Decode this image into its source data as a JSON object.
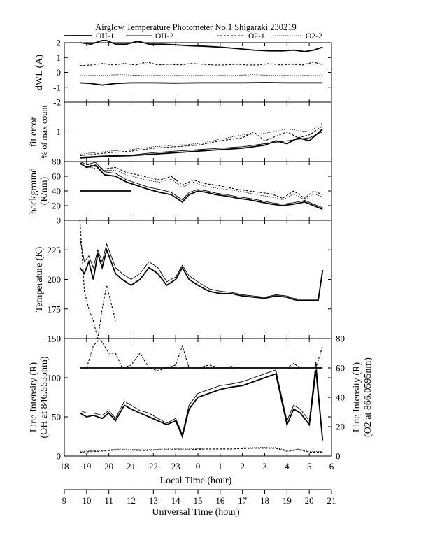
{
  "title": "Airglow Temperature Photometer No.1  Shigaraki  230219",
  "legend": [
    {
      "label": "OH-1",
      "style": "solid-thick"
    },
    {
      "label": "OH-2",
      "style": "solid-thin"
    },
    {
      "label": "O2-1",
      "style": "dashed"
    },
    {
      "label": "O2-2",
      "style": "dotted-thin"
    }
  ],
  "axes": {
    "local_time": {
      "label": "Local Time (hour)",
      "ticks": [
        "18",
        "19",
        "20",
        "21",
        "22",
        "23",
        "0",
        "1",
        "2",
        "3",
        "4",
        "5",
        "6"
      ],
      "range": [
        18,
        30
      ]
    },
    "universal_time": {
      "label": "Universal Time (hour)",
      "ticks": [
        "9",
        "10",
        "11",
        "12",
        "13",
        "14",
        "15",
        "16",
        "17",
        "18",
        "19",
        "20",
        "21"
      ],
      "range": [
        9,
        21
      ]
    }
  },
  "chart_data": [
    {
      "id": "dwl",
      "type": "line",
      "ylabel": "dWL (A)",
      "ylim": [
        -2,
        2
      ],
      "yticks": [
        "2",
        "1",
        "0",
        "-1",
        "-2"
      ],
      "series": [
        {
          "name": "OH-1",
          "style": "solid-thick",
          "x": [
            18.7,
            19.2,
            19.8,
            20.3,
            20.8,
            21.3,
            21.8,
            22.4,
            23.0,
            23.6,
            24.4,
            25.0,
            25.8,
            26.5,
            27.2,
            27.8,
            28.3,
            28.8,
            29.2,
            29.6
          ],
          "y": [
            2.0,
            1.9,
            2.2,
            1.9,
            1.9,
            2.1,
            1.9,
            1.9,
            1.85,
            1.8,
            1.75,
            1.7,
            1.6,
            1.5,
            1.45,
            1.45,
            1.5,
            1.4,
            1.5,
            1.7
          ]
        },
        {
          "name": "OH-1",
          "style": "solid-thick",
          "x": [
            18.7,
            19.2,
            19.7,
            20.3,
            21.0,
            22.0,
            23.0,
            24.0,
            25.0,
            26.0,
            27.0,
            28.0,
            29.0,
            29.6
          ],
          "y": [
            -0.7,
            -0.75,
            -0.85,
            -0.75,
            -0.7,
            -0.7,
            -0.72,
            -0.7,
            -0.7,
            -0.7,
            -0.68,
            -0.7,
            -0.7,
            -0.7
          ]
        },
        {
          "name": "O2-1",
          "style": "dashed",
          "x": [
            18.7,
            19.2,
            19.7,
            20.2,
            20.7,
            21.2,
            21.7,
            22.2,
            22.7,
            23.2,
            23.7,
            24.2,
            24.7,
            25.2,
            25.7,
            26.2,
            26.7,
            27.2,
            27.7,
            28.2,
            28.7,
            29.2,
            29.6
          ],
          "y": [
            0.45,
            0.5,
            0.6,
            0.5,
            0.6,
            0.5,
            0.7,
            0.5,
            0.55,
            0.5,
            0.6,
            0.55,
            0.5,
            0.5,
            0.55,
            0.5,
            0.5,
            0.6,
            0.5,
            0.55,
            0.5,
            0.7,
            0.5
          ]
        },
        {
          "name": "O2-2",
          "style": "dotted-thin",
          "x": [
            18.7,
            19.5,
            20.5,
            21.5,
            22.5,
            23.5,
            24.5,
            25.5,
            26.5,
            27.5,
            28.5,
            29.6
          ],
          "y": [
            -0.2,
            -0.2,
            -0.15,
            -0.2,
            -0.2,
            -0.2,
            -0.2,
            -0.2,
            -0.15,
            -0.2,
            -0.2,
            -0.2
          ]
        }
      ]
    },
    {
      "id": "fit",
      "type": "line",
      "ylabel": "fit error",
      "ylabel2": "% of max count",
      "ylim": [
        0,
        2
      ],
      "yticks": [
        "2",
        "1",
        "0"
      ],
      "series": [
        {
          "name": "OH-1",
          "style": "solid-thick",
          "x": [
            18.7,
            20.0,
            21.0,
            22.0,
            23.0,
            24.0,
            25.0,
            26.0,
            27.0,
            27.5,
            28.0,
            28.5,
            29.0,
            29.6
          ],
          "y": [
            0.12,
            0.18,
            0.2,
            0.25,
            0.3,
            0.35,
            0.4,
            0.45,
            0.55,
            0.7,
            0.6,
            0.8,
            0.7,
            1.1
          ]
        },
        {
          "name": "OH-2",
          "style": "solid-thin",
          "x": [
            18.7,
            20.0,
            21.0,
            22.0,
            23.0,
            24.0,
            25.0,
            26.0,
            27.0,
            28.0,
            29.0,
            29.6
          ],
          "y": [
            0.15,
            0.2,
            0.22,
            0.3,
            0.35,
            0.4,
            0.45,
            0.5,
            0.6,
            0.7,
            0.8,
            1.0
          ]
        },
        {
          "name": "O2-1",
          "style": "dashed",
          "x": [
            18.7,
            20.0,
            21.0,
            22.0,
            23.0,
            24.0,
            25.0,
            26.0,
            26.5,
            27.0,
            28.0,
            28.5,
            29.0,
            29.6
          ],
          "y": [
            0.2,
            0.3,
            0.35,
            0.45,
            0.5,
            0.55,
            0.7,
            0.8,
            1.0,
            0.7,
            1.0,
            0.8,
            0.9,
            1.2
          ]
        },
        {
          "name": "O2-2",
          "style": "dotted-thin",
          "x": [
            18.7,
            20.0,
            21.0,
            22.0,
            23.0,
            24.0,
            25.0,
            26.0,
            27.0,
            28.0,
            29.0,
            29.6
          ],
          "y": [
            0.25,
            0.35,
            0.4,
            0.5,
            0.55,
            0.6,
            0.75,
            0.9,
            0.95,
            1.1,
            1.0,
            1.3
          ]
        }
      ]
    },
    {
      "id": "background",
      "type": "line",
      "ylabel": "background",
      "ylabel2": "(R/nm)",
      "ylim": [
        0,
        80
      ],
      "yticks": [
        "80",
        "60",
        "40",
        "20",
        "0"
      ],
      "series": [
        {
          "name": "OH-1",
          "style": "solid-thick",
          "x": [
            18.7,
            19.0,
            19.4,
            19.8,
            20.3,
            20.8,
            21.3,
            21.8,
            22.3,
            22.8,
            23.3,
            23.6,
            24.0,
            24.4,
            24.8,
            25.3,
            25.8,
            26.3,
            26.8,
            27.3,
            27.8,
            28.3,
            28.8,
            29.2,
            29.6
          ],
          "y": [
            78,
            72,
            75,
            62,
            60,
            52,
            47,
            42,
            38,
            35,
            25,
            35,
            40,
            38,
            35,
            33,
            30,
            28,
            25,
            22,
            20,
            22,
            25,
            20,
            15
          ]
        },
        {
          "name": "OH-2",
          "style": "solid-thin",
          "x": [
            18.7,
            19.0,
            19.4,
            19.8,
            20.3,
            20.8,
            21.3,
            21.8,
            22.3,
            22.8,
            23.3,
            23.6,
            24.0,
            24.4,
            24.8,
            25.3,
            25.8,
            26.3,
            26.8,
            27.3,
            27.8,
            28.3,
            28.8,
            29.2,
            29.6
          ],
          "y": [
            80,
            76,
            79,
            66,
            64,
            55,
            50,
            45,
            42,
            38,
            28,
            38,
            42,
            40,
            37,
            35,
            32,
            30,
            27,
            24,
            22,
            24,
            27,
            22,
            17
          ]
        },
        {
          "name": "O2-1",
          "style": "dashed",
          "x": [
            18.7,
            19.2,
            19.8,
            20.3,
            20.8,
            21.3,
            21.8,
            22.3,
            22.8,
            23.3,
            23.8,
            24.3,
            24.8,
            25.3,
            25.8,
            26.3,
            26.8,
            27.3,
            27.8,
            28.3,
            28.8,
            29.2,
            29.6
          ],
          "y": [
            78,
            75,
            70,
            72,
            65,
            62,
            58,
            55,
            60,
            48,
            55,
            50,
            48,
            45,
            42,
            40,
            38,
            36,
            30,
            40,
            30,
            40,
            35
          ]
        },
        {
          "name": "O2-2",
          "style": "dotted-thin",
          "x": [
            18.7,
            19.2,
            19.8,
            20.3,
            20.8,
            21.3,
            21.8,
            22.3,
            22.8,
            23.3,
            23.8,
            24.3,
            24.8,
            25.3,
            25.8,
            26.3,
            26.8,
            27.3,
            27.8,
            28.3,
            28.8,
            29.2,
            29.6
          ],
          "y": [
            76,
            72,
            68,
            68,
            62,
            58,
            54,
            52,
            56,
            45,
            52,
            46,
            44,
            42,
            40,
            37,
            34,
            32,
            28,
            36,
            28,
            36,
            32
          ]
        },
        {
          "name": "OH-1",
          "style": "solid-thick",
          "x": [
            18.7,
            19.5,
            20.5,
            21.0
          ],
          "y": [
            40,
            40,
            40,
            40
          ]
        }
      ]
    },
    {
      "id": "temperature",
      "type": "line",
      "ylabel": "Temperature (K)",
      "ylim": [
        150,
        250
      ],
      "yticks": [
        "225",
        "200",
        "175",
        "150"
      ],
      "series": [
        {
          "name": "OH-1",
          "style": "solid-thick",
          "x": [
            18.7,
            18.9,
            19.1,
            19.3,
            19.5,
            19.7,
            19.9,
            20.1,
            20.3,
            20.6,
            21.0,
            21.4,
            21.8,
            22.2,
            22.6,
            23.0,
            23.3,
            23.6,
            24.0,
            24.5,
            25.0,
            25.5,
            26.0,
            26.5,
            27.0,
            27.5,
            28.0,
            28.3,
            28.6,
            29.0,
            29.4,
            29.6
          ],
          "y": [
            210,
            205,
            215,
            200,
            222,
            210,
            225,
            215,
            205,
            200,
            195,
            200,
            210,
            205,
            195,
            200,
            210,
            200,
            195,
            190,
            188,
            188,
            186,
            185,
            184,
            186,
            185,
            183,
            182,
            182,
            182,
            208
          ]
        },
        {
          "name": "OH-2",
          "style": "solid-thin",
          "x": [
            18.7,
            18.9,
            19.1,
            19.3,
            19.5,
            19.7,
            19.9,
            20.1,
            20.3,
            20.6,
            21.0,
            21.4,
            21.8,
            22.2,
            22.6,
            23.0,
            23.3,
            23.6,
            24.0,
            24.5,
            25.0,
            25.5,
            26.0,
            26.5,
            27.0,
            27.5,
            28.0,
            28.3,
            28.6,
            29.0,
            29.4,
            29.6
          ],
          "y": [
            235,
            215,
            220,
            210,
            225,
            215,
            230,
            220,
            210,
            205,
            200,
            205,
            215,
            210,
            198,
            202,
            212,
            203,
            198,
            192,
            190,
            189,
            187,
            186,
            185,
            187,
            186,
            184,
            183,
            183,
            183,
            206
          ]
        },
        {
          "name": "O2-1",
          "style": "dashed",
          "x": [
            18.7,
            18.9,
            19.1,
            19.3,
            19.5,
            19.7,
            19.9,
            20.1,
            20.3
          ],
          "y": [
            250,
            190,
            175,
            165,
            150,
            175,
            195,
            180,
            165
          ]
        }
      ]
    },
    {
      "id": "intensity",
      "type": "line",
      "ylabel": "Line Intensity (R)",
      "ylabel2": "(OH at 846.5555nm)",
      "ylabel_right": "Line Intensity (R)",
      "ylabel_right2": "(O2 at 866.0595nm)",
      "ylim": [
        0,
        150
      ],
      "ylim_right": [
        0,
        80
      ],
      "yticks": [
        "150",
        "100",
        "50",
        "0"
      ],
      "yticks_right": [
        "80",
        "60",
        "40",
        "20",
        "0"
      ],
      "series": [
        {
          "name": "OH-1",
          "style": "solid-thick",
          "x": [
            18.7,
            19.0,
            19.3,
            19.7,
            20.0,
            20.3,
            20.7,
            21.0,
            21.4,
            21.8,
            22.2,
            22.6,
            23.0,
            23.3,
            23.6,
            24.0,
            24.5,
            25.0,
            25.5,
            26.0,
            26.5,
            27.0,
            27.5,
            28.0,
            28.3,
            28.6,
            29.0,
            29.3,
            29.6
          ],
          "y": [
            55,
            50,
            52,
            48,
            55,
            45,
            65,
            60,
            55,
            50,
            45,
            40,
            45,
            25,
            60,
            75,
            80,
            85,
            88,
            90,
            95,
            100,
            105,
            40,
            60,
            55,
            40,
            110,
            20
          ]
        },
        {
          "name": "OH-2",
          "style": "solid-thin",
          "x": [
            18.7,
            19.0,
            19.3,
            19.7,
            20.0,
            20.3,
            20.7,
            21.0,
            21.4,
            21.8,
            22.2,
            22.6,
            23.0,
            23.3,
            23.6,
            24.0,
            24.5,
            25.0,
            25.5,
            26.0,
            26.5,
            27.0,
            27.5,
            28.0,
            28.3,
            28.6,
            29.0,
            29.3,
            29.6
          ],
          "y": [
            58,
            55,
            55,
            52,
            58,
            48,
            70,
            65,
            58,
            55,
            48,
            42,
            48,
            28,
            65,
            80,
            85,
            90,
            92,
            95,
            100,
            105,
            110,
            45,
            65,
            60,
            45,
            120,
            22
          ]
        },
        {
          "name": "O2-1",
          "style": "dashed",
          "x": [
            18.7,
            19.5,
            20.5,
            21.5,
            22.5,
            23.5,
            24.5,
            25.5,
            26.5,
            27.5,
            28.0,
            28.5,
            29.0,
            29.6
          ],
          "y": [
            5,
            6,
            8,
            7,
            8,
            8,
            9,
            9,
            10,
            10,
            6,
            8,
            5,
            5
          ]
        },
        {
          "name": "O2-2",
          "style": "dotted-thin",
          "x": [
            18.7,
            19.5,
            20.5,
            21.5,
            22.5,
            23.5,
            24.5,
            25.5,
            26.5,
            27.5,
            28.0,
            28.5,
            29.0,
            29.6
          ],
          "y": [
            6,
            7,
            9,
            8,
            9,
            9,
            10,
            10,
            11,
            11,
            7,
            9,
            6,
            6
          ]
        },
        {
          "name": "O2-1",
          "style": "dashed",
          "axis": "right",
          "x": [
            18.7,
            19.0,
            19.3,
            19.6,
            20.0,
            20.3,
            20.6,
            21.0,
            21.4,
            21.8,
            22.2,
            22.6,
            23.0,
            23.3,
            23.6,
            24.0,
            24.5,
            25.0,
            25.5,
            26.0,
            26.5,
            27.0,
            27.5,
            28.0,
            28.3,
            28.6,
            29.0,
            29.3,
            29.6
          ],
          "y": [
            60,
            60,
            75,
            80,
            70,
            70,
            60,
            62,
            70,
            60,
            58,
            60,
            62,
            75,
            60,
            60,
            62,
            60,
            61,
            60,
            60,
            60,
            60,
            60,
            63,
            60,
            60,
            60,
            75
          ]
        },
        {
          "name": "OH-1",
          "style": "solid-thick",
          "axis": "right",
          "x": [
            18.7,
            29.6
          ],
          "y": [
            60,
            60
          ]
        }
      ]
    }
  ]
}
